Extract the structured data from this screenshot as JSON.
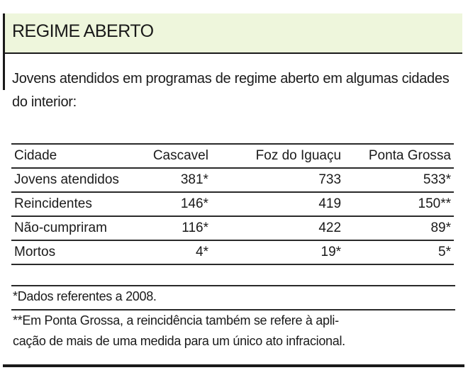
{
  "header": {
    "title": "REGIME ABERTO"
  },
  "intro": "Jovens atendidos em programas de regime aberto em algumas cidades do interior:",
  "table": {
    "columns": [
      "Cidade",
      "Cascavel",
      "Foz do Iguaçu",
      "Ponta Grossa"
    ],
    "rows": [
      [
        "Jovens atendidos",
        "381*",
        "733",
        "533*"
      ],
      [
        "Reincidentes",
        "146*",
        "419",
        "150**"
      ],
      [
        "Não-cumpriram",
        "116*",
        "422",
        "89*"
      ],
      [
        "Mortos",
        "4*",
        "19*",
        "5*"
      ]
    ]
  },
  "footnotes": [
    "*Dados referentes a 2008.",
    "**Em Ponta Grossa, a reincidência também se refere à apli-cação de mais de uma medida para um único ato infracional."
  ],
  "footnote2_lines": [
    "**Em Ponta Grossa, a reincidência também se refere à apli-",
    "cação de mais de uma medida para um único ato infracional."
  ],
  "colors": {
    "header_bg": "#eef6dc",
    "rule": "#1a1a1a"
  }
}
